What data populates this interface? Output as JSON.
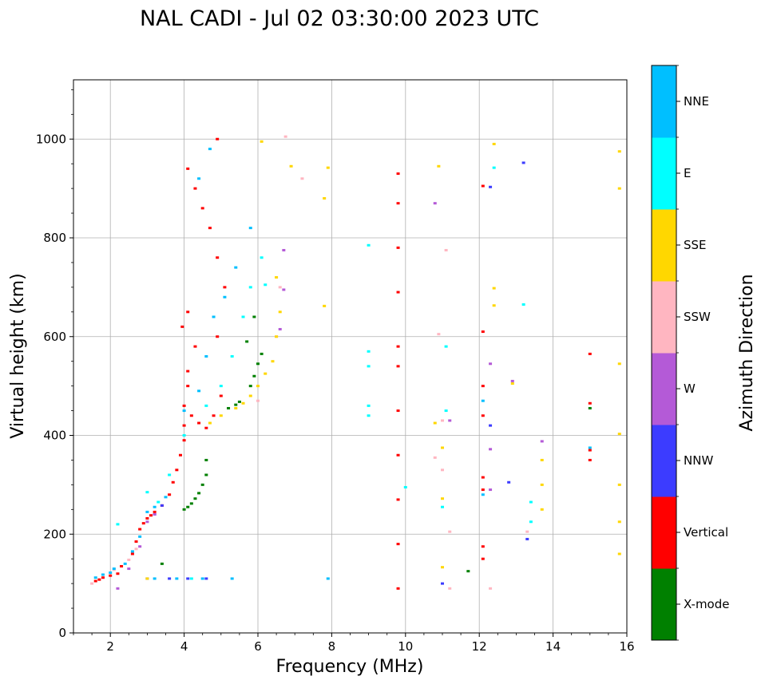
{
  "chart_data": {
    "type": "scatter",
    "title": "NAL CADI - Jul 02 03:30:00 2023 UTC",
    "xlabel": "Frequency (MHz)",
    "ylabel": "Virtual height (km)",
    "xlim": [
      1.0,
      16.0
    ],
    "ylim": [
      0,
      1120
    ],
    "x_ticks": [
      2,
      4,
      6,
      8,
      10,
      12,
      14,
      16
    ],
    "y_ticks": [
      0,
      200,
      400,
      600,
      800,
      1000
    ],
    "grid": true,
    "colorbar": {
      "title": "Azimuth Direction",
      "categories": [
        {
          "name": "X-mode",
          "color": "#008000"
        },
        {
          "name": "Vertical",
          "color": "#ff0000"
        },
        {
          "name": "NNW",
          "color": "#3c3cff"
        },
        {
          "name": "W",
          "color": "#b45ad7"
        },
        {
          "name": "SSW",
          "color": "#ffb6c1"
        },
        {
          "name": "SSE",
          "color": "#ffd700"
        },
        {
          "name": "E",
          "color": "#00ffff"
        },
        {
          "name": "NNE",
          "color": "#00bfff"
        }
      ]
    },
    "series": [
      {
        "name": "X-mode",
        "points": [
          [
            4.0,
            250
          ],
          [
            4.1,
            255
          ],
          [
            4.2,
            262
          ],
          [
            4.3,
            272
          ],
          [
            4.4,
            283
          ],
          [
            4.5,
            300
          ],
          [
            4.6,
            320
          ],
          [
            4.6,
            350
          ],
          [
            5.2,
            455
          ],
          [
            5.4,
            462
          ],
          [
            5.5,
            468
          ],
          [
            5.8,
            500
          ],
          [
            5.9,
            520
          ],
          [
            6.0,
            545
          ],
          [
            6.1,
            565
          ],
          [
            5.7,
            590
          ],
          [
            5.9,
            640
          ],
          [
            3.4,
            140
          ],
          [
            11.7,
            125
          ],
          [
            15.0,
            455
          ]
        ]
      },
      {
        "name": "Vertical",
        "points": [
          [
            1.6,
            105
          ],
          [
            1.7,
            108
          ],
          [
            1.8,
            112
          ],
          [
            2.0,
            116
          ],
          [
            2.2,
            120
          ],
          [
            2.3,
            135
          ],
          [
            2.6,
            160
          ],
          [
            2.7,
            185
          ],
          [
            2.8,
            210
          ],
          [
            2.9,
            222
          ],
          [
            3.0,
            232
          ],
          [
            3.1,
            238
          ],
          [
            3.2,
            245
          ],
          [
            3.4,
            258
          ],
          [
            3.6,
            280
          ],
          [
            3.7,
            305
          ],
          [
            3.8,
            330
          ],
          [
            3.9,
            360
          ],
          [
            4.0,
            390
          ],
          [
            4.0,
            420
          ],
          [
            4.0,
            460
          ],
          [
            4.1,
            500
          ],
          [
            4.1,
            530
          ],
          [
            3.95,
            620
          ],
          [
            4.2,
            440
          ],
          [
            4.4,
            425
          ],
          [
            4.6,
            415
          ],
          [
            4.8,
            440
          ],
          [
            5.0,
            480
          ],
          [
            4.9,
            600
          ],
          [
            5.1,
            700
          ],
          [
            4.9,
            760
          ],
          [
            4.1,
            940
          ],
          [
            4.3,
            900
          ],
          [
            4.5,
            860
          ],
          [
            4.7,
            820
          ],
          [
            4.9,
            1000
          ],
          [
            9.8,
            90
          ],
          [
            9.8,
            180
          ],
          [
            9.8,
            270
          ],
          [
            9.8,
            360
          ],
          [
            9.8,
            450
          ],
          [
            9.8,
            540
          ],
          [
            9.8,
            580
          ],
          [
            9.8,
            690
          ],
          [
            9.8,
            780
          ],
          [
            9.8,
            870
          ],
          [
            9.8,
            930
          ],
          [
            12.1,
            150
          ],
          [
            12.1,
            175
          ],
          [
            12.1,
            290
          ],
          [
            12.1,
            315
          ],
          [
            12.1,
            440
          ],
          [
            12.1,
            500
          ],
          [
            12.1,
            610
          ],
          [
            12.1,
            905
          ],
          [
            15.0,
            350
          ],
          [
            15.0,
            370
          ],
          [
            15.0,
            465
          ],
          [
            15.0,
            565
          ],
          [
            4.3,
            580
          ],
          [
            4.1,
            650
          ]
        ]
      },
      {
        "name": "NNW",
        "points": [
          [
            3.0,
            110
          ],
          [
            3.6,
            110
          ],
          [
            4.1,
            110
          ],
          [
            4.6,
            110
          ],
          [
            3.2,
            240
          ],
          [
            3.4,
            258
          ],
          [
            11.0,
            100
          ],
          [
            12.3,
            420
          ],
          [
            12.3,
            903
          ],
          [
            13.2,
            952
          ],
          [
            13.3,
            190
          ],
          [
            12.8,
            305
          ]
        ]
      },
      {
        "name": "W",
        "points": [
          [
            2.2,
            90
          ],
          [
            2.5,
            130
          ],
          [
            2.8,
            175
          ],
          [
            3.0,
            225
          ],
          [
            3.2,
            240
          ],
          [
            6.6,
            615
          ],
          [
            6.7,
            775
          ],
          [
            6.7,
            695
          ],
          [
            12.3,
            545
          ],
          [
            12.3,
            372
          ],
          [
            12.3,
            290
          ],
          [
            12.9,
            510
          ],
          [
            13.7,
            388
          ],
          [
            11.2,
            430
          ],
          [
            10.8,
            870
          ]
        ]
      },
      {
        "name": "SSW",
        "points": [
          [
            1.5,
            100
          ],
          [
            2.1,
            128
          ],
          [
            2.5,
            148
          ],
          [
            2.7,
            170
          ],
          [
            6.5,
            600
          ],
          [
            6.6,
            700
          ],
          [
            6.75,
            1005
          ],
          [
            6.0,
            470
          ],
          [
            10.8,
            355
          ],
          [
            10.9,
            605
          ],
          [
            11.0,
            430
          ],
          [
            11.0,
            330
          ],
          [
            11.1,
            775
          ],
          [
            11.2,
            90
          ],
          [
            11.2,
            205
          ],
          [
            12.3,
            90
          ],
          [
            13.3,
            205
          ],
          [
            7.2,
            920
          ]
        ]
      },
      {
        "name": "SSE",
        "points": [
          [
            3.0,
            110
          ],
          [
            4.7,
            425
          ],
          [
            5.0,
            440
          ],
          [
            5.4,
            455
          ],
          [
            5.6,
            465
          ],
          [
            5.8,
            480
          ],
          [
            6.0,
            500
          ],
          [
            6.2,
            525
          ],
          [
            6.4,
            550
          ],
          [
            6.5,
            600
          ],
          [
            6.6,
            650
          ],
          [
            6.5,
            720
          ],
          [
            6.9,
            945
          ],
          [
            7.9,
            942
          ],
          [
            7.8,
            880
          ],
          [
            7.8,
            662
          ],
          [
            6.1,
            995
          ],
          [
            10.8,
            425
          ],
          [
            10.9,
            945
          ],
          [
            11.0,
            375
          ],
          [
            11.0,
            272
          ],
          [
            11.0,
            133
          ],
          [
            12.4,
            990
          ],
          [
            12.4,
            698
          ],
          [
            12.4,
            663
          ],
          [
            12.9,
            505
          ],
          [
            13.7,
            300
          ],
          [
            13.7,
            350
          ],
          [
            13.7,
            250
          ],
          [
            15.8,
            975
          ],
          [
            15.8,
            900
          ],
          [
            15.8,
            545
          ],
          [
            15.8,
            403
          ],
          [
            15.8,
            300
          ],
          [
            15.8,
            225
          ],
          [
            15.8,
            160
          ]
        ]
      },
      {
        "name": "E",
        "points": [
          [
            2.2,
            220
          ],
          [
            3.0,
            285
          ],
          [
            3.3,
            265
          ],
          [
            3.6,
            320
          ],
          [
            4.0,
            400
          ],
          [
            4.6,
            460
          ],
          [
            5.0,
            500
          ],
          [
            5.3,
            560
          ],
          [
            5.6,
            640
          ],
          [
            5.8,
            700
          ],
          [
            6.1,
            760
          ],
          [
            6.2,
            705
          ],
          [
            9.0,
            785
          ],
          [
            9.0,
            570
          ],
          [
            9.0,
            540
          ],
          [
            9.0,
            460
          ],
          [
            9.0,
            440
          ],
          [
            10.0,
            295
          ],
          [
            11.0,
            255
          ],
          [
            11.1,
            580
          ],
          [
            11.1,
            450
          ],
          [
            12.4,
            942
          ],
          [
            13.2,
            665
          ],
          [
            13.4,
            265
          ],
          [
            13.4,
            225
          ],
          [
            4.2,
            110
          ]
        ]
      },
      {
        "name": "NNE",
        "points": [
          [
            1.6,
            112
          ],
          [
            1.8,
            118
          ],
          [
            2.0,
            122
          ],
          [
            2.1,
            130
          ],
          [
            2.4,
            140
          ],
          [
            2.6,
            165
          ],
          [
            2.8,
            195
          ],
          [
            3.0,
            245
          ],
          [
            3.2,
            255
          ],
          [
            3.5,
            275
          ],
          [
            4.0,
            450
          ],
          [
            4.4,
            490
          ],
          [
            4.6,
            560
          ],
          [
            4.8,
            640
          ],
          [
            5.1,
            680
          ],
          [
            5.4,
            740
          ],
          [
            5.8,
            820
          ],
          [
            4.4,
            920
          ],
          [
            4.7,
            980
          ],
          [
            3.2,
            110
          ],
          [
            3.8,
            110
          ],
          [
            4.5,
            110
          ],
          [
            5.3,
            110
          ],
          [
            7.9,
            110
          ],
          [
            12.1,
            470
          ],
          [
            12.1,
            280
          ],
          [
            15.0,
            375
          ]
        ]
      }
    ]
  }
}
